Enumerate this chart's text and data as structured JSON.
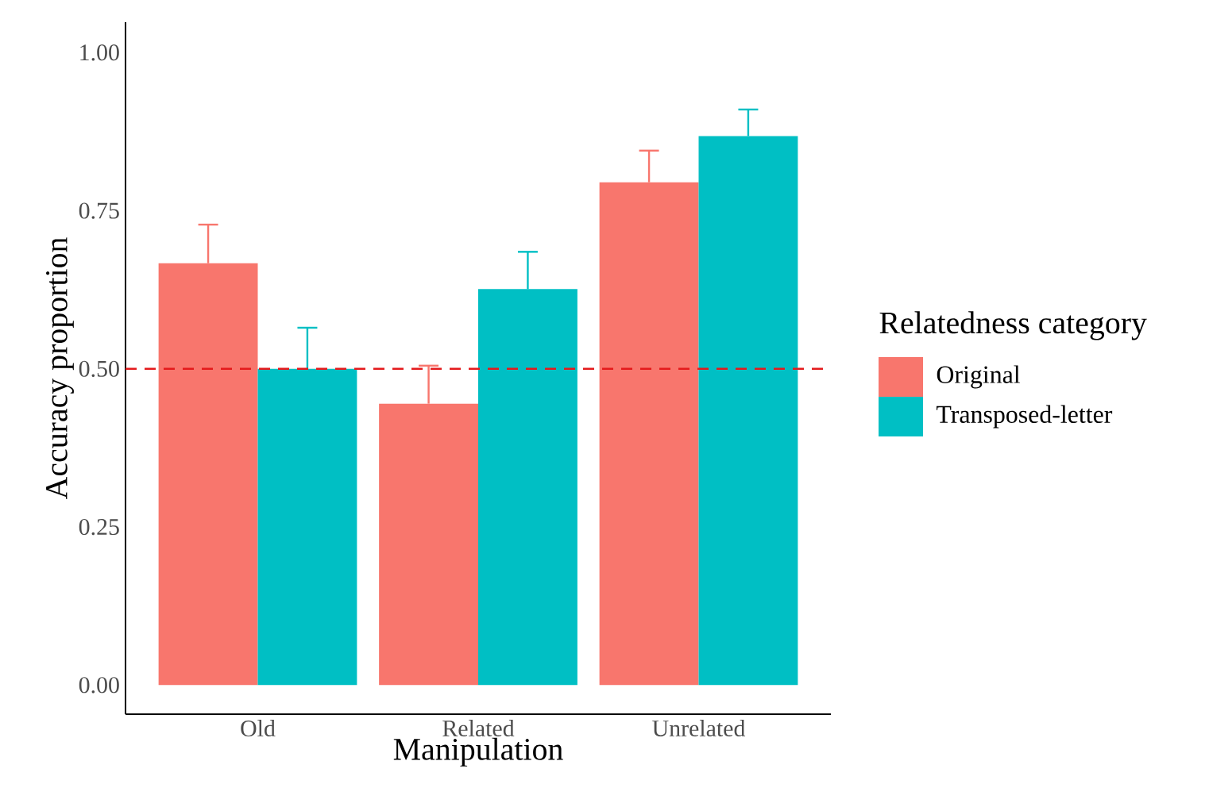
{
  "chart_data": {
    "type": "bar",
    "xlabel": "Manipulation",
    "ylabel": "Accuracy proportion",
    "legend_title": "Relatedness category",
    "categories": [
      "Old",
      "Related",
      "Unrelated"
    ],
    "series": [
      {
        "name": "Original",
        "color": "#f8766d",
        "values": [
          0.667,
          0.445,
          0.795
        ],
        "errors": [
          [
            0.667,
            0.728
          ],
          [
            0.445,
            0.505
          ],
          [
            0.795,
            0.845
          ]
        ]
      },
      {
        "name": "Transposed-letter",
        "color": "#00bfc4",
        "values": [
          0.5,
          0.626,
          0.868
        ],
        "errors": [
          [
            0.5,
            0.565
          ],
          [
            0.626,
            0.685
          ],
          [
            0.868,
            0.91
          ]
        ]
      }
    ],
    "ylim": [
      -0.046,
      1.048
    ],
    "yticks": [
      {
        "value": 0,
        "label": "0.00"
      },
      {
        "value": 0.25,
        "label": "0.25"
      },
      {
        "value": 0.5,
        "label": "0.50"
      },
      {
        "value": 0.75,
        "label": "0.75"
      },
      {
        "value": 1,
        "label": "1.00"
      }
    ],
    "ref_lines": [
      {
        "axis": "y",
        "value": 0.5,
        "color": "#e41a1c",
        "line_style": "dashed"
      }
    ],
    "legend": "right",
    "grid": false
  }
}
